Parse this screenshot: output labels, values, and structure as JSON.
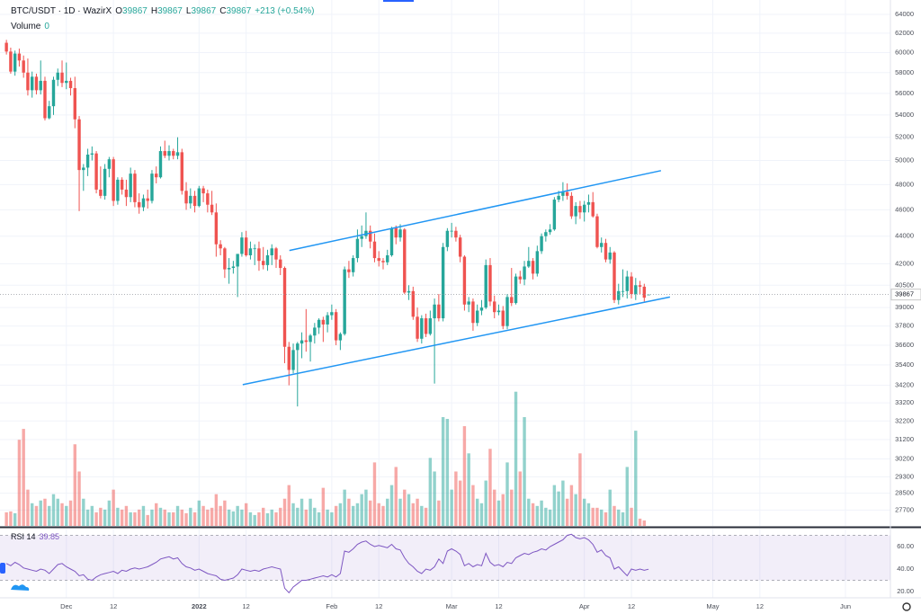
{
  "chart_data": {
    "type": "candlestick",
    "symbol": "BTC/USDT · 1D · WazirX",
    "fields": [
      "O",
      "H",
      "L",
      "C"
    ],
    "change": "+213 (+0.54%)",
    "volume_label": "Volume",
    "rsi_label": "RSI 14",
    "log_scale": true,
    "grid": true,
    "up_color": "#26a69a",
    "down_color": "#ef5350",
    "xlim": [
      -15.5,
      192.5
    ],
    "xticks": [
      {
        "value": 0,
        "label": "Dec"
      },
      {
        "value": 11,
        "label": "12"
      },
      {
        "value": 31,
        "label": "2022"
      },
      {
        "value": 42,
        "label": "12"
      },
      {
        "value": 62,
        "label": "Feb"
      },
      {
        "value": 73,
        "label": "12"
      },
      {
        "value": 90,
        "label": "Mar"
      },
      {
        "value": 101,
        "label": "12"
      },
      {
        "value": 121,
        "label": "Apr"
      },
      {
        "value": 132,
        "label": "12"
      },
      {
        "value": 151,
        "label": "May"
      },
      {
        "value": 162,
        "label": "12"
      },
      {
        "value": 182,
        "label": "Jun"
      }
    ],
    "ylim": [
      26970,
      65570
    ],
    "yticks": [
      64000,
      62000,
      60000,
      58000,
      56000,
      54000,
      52000,
      50000,
      48000,
      46000,
      44000,
      42000,
      40500,
      39000,
      37800,
      36600,
      35400,
      34200,
      33200,
      32200,
      31200,
      30200,
      29300,
      28500,
      27700
    ],
    "x": [
      -14,
      -13,
      -12,
      -11,
      -10,
      -9,
      -8,
      -7,
      -6,
      -5,
      -4,
      -3,
      -2,
      -1,
      0,
      1,
      2,
      3,
      4,
      5,
      6,
      7,
      8,
      9,
      10,
      11,
      12,
      13,
      14,
      15,
      16,
      17,
      18,
      19,
      20,
      21,
      22,
      23,
      24,
      25,
      26,
      27,
      28,
      29,
      30,
      31,
      32,
      33,
      34,
      35,
      36,
      37,
      38,
      39,
      40,
      41,
      42,
      43,
      44,
      45,
      46,
      47,
      48,
      49,
      50,
      51,
      52,
      53,
      54,
      55,
      56,
      57,
      58,
      59,
      60,
      61,
      62,
      63,
      64,
      65,
      66,
      67,
      68,
      69,
      70,
      71,
      72,
      73,
      74,
      75,
      76,
      77,
      78,
      79,
      80,
      81,
      82,
      83,
      84,
      85,
      86,
      87,
      88,
      89,
      90,
      91,
      92,
      93,
      94,
      95,
      96,
      97,
      98,
      99,
      100,
      101,
      102,
      103,
      104,
      105,
      106,
      107,
      108,
      109,
      110,
      111,
      112,
      113,
      114,
      115,
      116,
      117,
      118,
      119,
      120,
      121,
      122,
      123,
      124,
      125,
      126,
      127,
      128,
      129,
      130,
      131,
      132,
      133,
      134,
      135,
      136
    ],
    "candles": [
      [
        61000,
        61300,
        59800,
        60100
      ],
      [
        60100,
        60500,
        57900,
        58100
      ],
      [
        58100,
        60200,
        57700,
        59900
      ],
      [
        59900,
        60400,
        58600,
        59200
      ],
      [
        59200,
        59700,
        57500,
        58000
      ],
      [
        58000,
        59400,
        55800,
        56300
      ],
      [
        56300,
        58100,
        55600,
        57600
      ],
      [
        57600,
        57900,
        55900,
        56300
      ],
      [
        56300,
        59200,
        55900,
        57200
      ],
      [
        57200,
        57600,
        53500,
        53700
      ],
      [
        53700,
        55300,
        53600,
        54800
      ],
      [
        54800,
        57600,
        54000,
        57300
      ],
      [
        57300,
        58400,
        56700,
        58000
      ],
      [
        58000,
        59200,
        56600,
        57000
      ],
      [
        57000,
        59000,
        56400,
        57200
      ],
      [
        57200,
        57500,
        55800,
        56500
      ],
      [
        56500,
        57600,
        52800,
        53600
      ],
      [
        53600,
        53900,
        45900,
        49200
      ],
      [
        49200,
        49700,
        47500,
        49400
      ],
      [
        49400,
        51000,
        48700,
        50500
      ],
      [
        50500,
        51200,
        50000,
        50600
      ],
      [
        50600,
        50800,
        47300,
        47600
      ],
      [
        47600,
        49500,
        46900,
        47100
      ],
      [
        47100,
        49700,
        46800,
        49300
      ],
      [
        49300,
        50300,
        48600,
        50100
      ],
      [
        50100,
        50300,
        46300,
        46700
      ],
      [
        46700,
        48600,
        46400,
        48400
      ],
      [
        48400,
        48600,
        47200,
        47600
      ],
      [
        47600,
        48400,
        46300,
        47000
      ],
      [
        47000,
        49400,
        46600,
        48900
      ],
      [
        48900,
        49200,
        46200,
        46600
      ],
      [
        46600,
        47300,
        45700,
        46200
      ],
      [
        46200,
        47200,
        45900,
        46900
      ],
      [
        46900,
        47600,
        46100,
        46700
      ],
      [
        46700,
        49200,
        46500,
        48900
      ],
      [
        48900,
        49500,
        48100,
        48600
      ],
      [
        48600,
        51200,
        48500,
        50800
      ],
      [
        50800,
        51700,
        50200,
        50400
      ],
      [
        50400,
        51300,
        50000,
        50800
      ],
      [
        50800,
        51000,
        50100,
        50400
      ],
      [
        50400,
        52000,
        50100,
        50700
      ],
      [
        50700,
        51000,
        47200,
        47500
      ],
      [
        47500,
        48200,
        46000,
        46500
      ],
      [
        46500,
        47700,
        46100,
        47100
      ],
      [
        47100,
        47500,
        45800,
        46300
      ],
      [
        46300,
        47900,
        46200,
        47700
      ],
      [
        47700,
        47900,
        46600,
        47300
      ],
      [
        47300,
        47600,
        45800,
        46400
      ],
      [
        46400,
        47500,
        45600,
        45800
      ],
      [
        45800,
        46500,
        42500,
        43400
      ],
      [
        43400,
        43700,
        42600,
        43100
      ],
      [
        43100,
        43200,
        41000,
        41600
      ],
      [
        41600,
        42400,
        40600,
        41700
      ],
      [
        41700,
        42200,
        41300,
        41800
      ],
      [
        41800,
        42700,
        39700,
        42700
      ],
      [
        42700,
        44300,
        42500,
        43900
      ],
      [
        43900,
        44400,
        42500,
        42600
      ],
      [
        42600,
        43600,
        42300,
        43100
      ],
      [
        43100,
        43400,
        41900,
        43100
      ],
      [
        43100,
        43600,
        41500,
        42200
      ],
      [
        42200,
        43200,
        41600,
        41900
      ],
      [
        41900,
        43000,
        41500,
        42600
      ],
      [
        42600,
        43400,
        41900,
        43100
      ],
      [
        43100,
        43200,
        41700,
        42300
      ],
      [
        42300,
        42600,
        41200,
        41700
      ],
      [
        41700,
        41800,
        35500,
        36500
      ],
      [
        36500,
        36800,
        34200,
        35100
      ],
      [
        35100,
        36700,
        34900,
        36300
      ],
      [
        36300,
        36800,
        33000,
        36700
      ],
      [
        36700,
        37400,
        35800,
        36900
      ],
      [
        36900,
        38900,
        36200,
        36800
      ],
      [
        36800,
        37300,
        35600,
        37200
      ],
      [
        37200,
        38000,
        36700,
        37700
      ],
      [
        37700,
        38300,
        37300,
        38200
      ],
      [
        38200,
        38400,
        36800,
        37900
      ],
      [
        37900,
        38700,
        37400,
        38500
      ],
      [
        38500,
        39200,
        38200,
        38700
      ],
      [
        38700,
        38900,
        36600,
        36900
      ],
      [
        36900,
        37400,
        36300,
        37300
      ],
      [
        37300,
        41800,
        37200,
        41600
      ],
      [
        41600,
        42200,
        41000,
        41400
      ],
      [
        41400,
        42600,
        41100,
        42400
      ],
      [
        42400,
        44500,
        42100,
        43800
      ],
      [
        43800,
        44800,
        43200,
        44000
      ],
      [
        44000,
        45800,
        43800,
        44400
      ],
      [
        44400,
        44800,
        43100,
        43600
      ],
      [
        43600,
        44200,
        42100,
        42400
      ],
      [
        42400,
        42900,
        41800,
        42200
      ],
      [
        42200,
        42400,
        41600,
        42100
      ],
      [
        42100,
        43000,
        41900,
        42600
      ],
      [
        42600,
        44700,
        42500,
        44600
      ],
      [
        44600,
        44800,
        43400,
        43900
      ],
      [
        43900,
        44900,
        43600,
        44500
      ],
      [
        44500,
        44600,
        39900,
        40000
      ],
      [
        40000,
        40500,
        39500,
        40100
      ],
      [
        40100,
        40400,
        38200,
        38400
      ],
      [
        38400,
        39000,
        36800,
        37000
      ],
      [
        37000,
        38500,
        36700,
        38300
      ],
      [
        38300,
        38600,
        37100,
        37300
      ],
      [
        37300,
        38800,
        37200,
        38300
      ],
      [
        38300,
        39600,
        34300,
        39200
      ],
      [
        39200,
        39900,
        38100,
        38300
      ],
      [
        38300,
        43500,
        38100,
        43200
      ],
      [
        43200,
        44600,
        42900,
        44400
      ],
      [
        44400,
        45000,
        43900,
        44400
      ],
      [
        44400,
        44700,
        43600,
        43900
      ],
      [
        43900,
        44100,
        42100,
        42500
      ],
      [
        42500,
        42600,
        38800,
        39200
      ],
      [
        39200,
        39700,
        38700,
        39400
      ],
      [
        39400,
        39600,
        37500,
        38000
      ],
      [
        38000,
        39200,
        37800,
        38800
      ],
      [
        38800,
        39500,
        38500,
        39000
      ],
      [
        39000,
        42300,
        38900,
        41900
      ],
      [
        41900,
        42400,
        39100,
        39400
      ],
      [
        39400,
        39800,
        38300,
        38700
      ],
      [
        38700,
        39200,
        38500,
        38800
      ],
      [
        38800,
        39100,
        37600,
        37800
      ],
      [
        37800,
        39900,
        37600,
        39700
      ],
      [
        39700,
        41700,
        39100,
        39300
      ],
      [
        39300,
        41300,
        39200,
        41100
      ],
      [
        41100,
        41500,
        40600,
        40900
      ],
      [
        40900,
        42200,
        40500,
        41800
      ],
      [
        41800,
        43200,
        41700,
        42200
      ],
      [
        42200,
        42400,
        40900,
        41300
      ],
      [
        41300,
        43300,
        41100,
        42900
      ],
      [
        42900,
        44200,
        42700,
        44000
      ],
      [
        44000,
        44500,
        43600,
        44300
      ],
      [
        44300,
        44900,
        44100,
        44500
      ],
      [
        44500,
        47000,
        44400,
        46800
      ],
      [
        46800,
        47500,
        46600,
        47100
      ],
      [
        47100,
        48200,
        46700,
        47400
      ],
      [
        47400,
        48100,
        46800,
        47100
      ],
      [
        47100,
        47400,
        45300,
        45500
      ],
      [
        45500,
        46600,
        44900,
        46300
      ],
      [
        46300,
        46700,
        45300,
        45800
      ],
      [
        45800,
        46700,
        45100,
        46400
      ],
      [
        46400,
        47200,
        45800,
        46600
      ],
      [
        46600,
        47400,
        45400,
        45500
      ],
      [
        45500,
        45700,
        43100,
        43200
      ],
      [
        43200,
        43900,
        42800,
        43500
      ],
      [
        43500,
        43800,
        42100,
        42300
      ],
      [
        42300,
        43200,
        42000,
        42800
      ],
      [
        42800,
        42900,
        39300,
        39500
      ],
      [
        39500,
        40600,
        39200,
        40100
      ],
      [
        40100,
        41600,
        39700,
        40100
      ],
      [
        40100,
        41500,
        39600,
        41100
      ],
      [
        41100,
        41400,
        39600,
        39900
      ],
      [
        39900,
        41000,
        39500,
        40500
      ],
      [
        40500,
        40800,
        39900,
        40400
      ],
      [
        40400,
        40600,
        39400,
        39654
      ],
      [
        39867,
        39867,
        39867,
        39867
      ]
    ],
    "volume_lim": [
      0,
      580
    ],
    "volumes": [
      15,
      16,
      14,
      95,
      107,
      40,
      25,
      22,
      28,
      30,
      22,
      35,
      30,
      25,
      22,
      28,
      90,
      60,
      30,
      18,
      22,
      15,
      20,
      18,
      28,
      40,
      20,
      18,
      22,
      15,
      15,
      18,
      22,
      12,
      18,
      25,
      20,
      18,
      15,
      15,
      22,
      18,
      14,
      20,
      15,
      28,
      22,
      18,
      20,
      35,
      22,
      28,
      18,
      16,
      22,
      18,
      25,
      15,
      12,
      15,
      20,
      14,
      18,
      15,
      20,
      30,
      45,
      25,
      20,
      30,
      18,
      30,
      20,
      15,
      42,
      18,
      15,
      22,
      25,
      40,
      30,
      22,
      25,
      35,
      40,
      28,
      70,
      25,
      22,
      30,
      45,
      65,
      30,
      40,
      35,
      25,
      30,
      22,
      20,
      75,
      60,
      28,
      120,
      118,
      40,
      60,
      50,
      110,
      80,
      45,
      30,
      25,
      50,
      85,
      40,
      28,
      35,
      70,
      40,
      148,
      60,
      120,
      30,
      25,
      22,
      28,
      20,
      18,
      45,
      38,
      50,
      30,
      45,
      35,
      80,
      30,
      25,
      20,
      20,
      18,
      15,
      40,
      22,
      18,
      15,
      65,
      20,
      105,
      8,
      6,
      0
    ],
    "rsi_color": "#7e57c2",
    "rsi_ylim": [
      14.4,
      76
    ],
    "rsi_yticks": [
      {
        "value": 60,
        "label": "60.00"
      },
      {
        "value": 40,
        "label": "40.00"
      },
      {
        "value": 20,
        "label": "20.00"
      }
    ],
    "rsi_bands": [
      30,
      70
    ],
    "rsi": [
      45,
      43,
      46,
      44,
      41,
      40,
      39,
      38,
      40,
      39,
      36,
      40,
      44,
      45,
      42,
      40,
      38,
      34,
      35,
      31,
      30,
      33,
      35,
      36,
      37,
      38,
      36,
      39,
      38,
      40,
      41,
      40,
      41,
      42,
      44,
      46,
      49,
      50,
      51,
      49,
      50,
      45,
      42,
      41,
      39,
      40,
      38,
      36,
      35,
      34,
      31,
      30,
      31,
      32,
      35,
      40,
      39,
      38,
      39,
      38,
      40,
      41,
      42,
      41,
      40,
      23,
      19,
      24,
      27,
      30,
      30,
      31,
      32,
      33,
      34,
      33,
      35,
      33,
      36,
      56,
      55,
      58,
      62,
      64,
      65,
      62,
      60,
      61,
      60,
      59,
      62,
      58,
      57,
      50,
      45,
      42,
      38,
      36,
      40,
      39,
      42,
      49,
      45,
      56,
      58,
      56,
      53,
      43,
      45,
      42,
      44,
      43,
      54,
      46,
      43,
      44,
      42,
      46,
      45,
      50,
      52,
      54,
      53,
      55,
      56,
      58,
      57,
      60,
      62,
      64,
      66,
      70,
      71,
      68,
      67,
      68,
      66,
      62,
      55,
      57,
      52,
      50,
      40,
      42,
      38,
      34,
      40,
      39,
      40,
      39,
      39.85
    ],
    "trendline_color": "#2196f3",
    "trendlines": [
      {
        "x": [
          52.1,
          138.9
        ],
        "y": [
          42950,
          49150
        ]
      },
      {
        "x": [
          41.2,
          141
        ],
        "y": [
          34240,
          39700
        ]
      }
    ]
  }
}
